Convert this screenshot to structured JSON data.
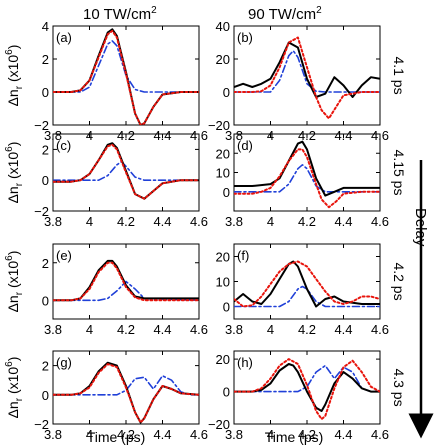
{
  "columns": [
    {
      "title_main": "10 TW/cm",
      "title_sup": "2"
    },
    {
      "title_main": "90 TW/cm",
      "title_sup": "2"
    }
  ],
  "rows": [
    {
      "delay_label": "4.1 ps"
    },
    {
      "delay_label": "4.15 ps"
    },
    {
      "delay_label": "4.2 ps"
    },
    {
      "delay_label": "4.3 ps"
    }
  ],
  "delay_axis_label": "Delay",
  "xlabel": "Time (ps)",
  "ylabel_main": "Δn",
  "ylabel_sub": "r",
  "ylabel_paren_open": " (x10",
  "ylabel_sup": "6",
  "ylabel_paren_close": ")",
  "colors": {
    "black_series": "#000000",
    "red_series": "#e8140c",
    "blue_series": "#2040d8"
  },
  "chart_data": [
    {
      "type": "line",
      "panel_label": "(a)",
      "xlim": [
        3.8,
        4.6
      ],
      "ylim": [
        -2,
        4
      ],
      "xticks": [
        "3.8",
        "4",
        "4.2",
        "4.4",
        "4.6"
      ],
      "yticks": [
        "−2",
        "0",
        "2",
        "4"
      ],
      "series": [
        {
          "style": "solid black",
          "x": [
            3.8,
            3.9,
            3.95,
            4,
            4.05,
            4.1,
            4.125,
            4.15,
            4.2,
            4.25,
            4.28,
            4.3,
            4.35,
            4.4,
            4.5,
            4.6
          ],
          "y": [
            0,
            0,
            0.1,
            0.7,
            2.2,
            3.6,
            3.8,
            3.4,
            1.2,
            -1.3,
            -2,
            -1.9,
            -0.9,
            -0.15,
            0,
            0
          ]
        },
        {
          "style": "dotted red",
          "x": [
            3.8,
            3.9,
            3.95,
            4,
            4.05,
            4.1,
            4.125,
            4.15,
            4.2,
            4.25,
            4.28,
            4.3,
            4.35,
            4.4,
            4.5,
            4.6
          ],
          "y": [
            0,
            0,
            0.1,
            0.7,
            2.1,
            3.5,
            3.7,
            3.3,
            1.1,
            -1.3,
            -2,
            -1.9,
            -0.9,
            -0.15,
            0,
            0
          ]
        },
        {
          "style": "dash-dot blue",
          "x": [
            3.8,
            3.95,
            4,
            4.05,
            4.1,
            4.125,
            4.15,
            4.2,
            4.25,
            4.3,
            4.6
          ],
          "y": [
            0,
            0,
            0.3,
            1.6,
            2.9,
            3.1,
            2.8,
            1,
            0.15,
            0,
            0
          ]
        }
      ]
    },
    {
      "type": "line",
      "panel_label": "(b)",
      "xlim": [
        3.8,
        4.6
      ],
      "ylim": [
        -20,
        40
      ],
      "xticks": [
        "3.8",
        "4",
        "4.2",
        "4.4",
        "4.6"
      ],
      "yticks": [
        "−20",
        "0",
        "20",
        "40"
      ],
      "series": [
        {
          "style": "solid black",
          "x": [
            3.8,
            3.85,
            3.9,
            3.95,
            4,
            4.05,
            4.1,
            4.15,
            4.2,
            4.25,
            4.3,
            4.35,
            4.4,
            4.45,
            4.5,
            4.55,
            4.6
          ],
          "y": [
            3,
            5,
            3,
            5,
            8,
            18,
            30,
            27,
            8,
            -3,
            -1,
            9,
            4,
            -3,
            4,
            9,
            8
          ]
        },
        {
          "style": "dotted red",
          "x": [
            3.8,
            3.9,
            3.95,
            4,
            4.05,
            4.1,
            4.15,
            4.2,
            4.25,
            4.28,
            4.32,
            4.36,
            4.4,
            4.5,
            4.6
          ],
          "y": [
            0,
            0,
            0.5,
            4,
            15,
            30,
            33,
            15,
            -3,
            -11,
            -16,
            -9,
            -2,
            0,
            0
          ]
        },
        {
          "style": "dash-dot blue",
          "x": [
            3.8,
            4,
            4.05,
            4.1,
            4.125,
            4.15,
            4.2,
            4.25,
            4.3,
            4.6
          ],
          "y": [
            0,
            0,
            7,
            22,
            25,
            21,
            5,
            0.5,
            0,
            0
          ]
        }
      ]
    },
    {
      "type": "line",
      "panel_label": "(c)",
      "xlim": [
        3.8,
        4.6
      ],
      "ylim": [
        -2,
        3
      ],
      "xticks": [
        "3.8",
        "4",
        "4.2",
        "4.4",
        "4.6"
      ],
      "yticks": [
        "−2",
        "0",
        "2"
      ],
      "series": [
        {
          "style": "solid black",
          "x": [
            3.8,
            3.9,
            3.95,
            4,
            4.05,
            4.1,
            4.125,
            4.15,
            4.2,
            4.25,
            4.3,
            4.35,
            4.4,
            4.5,
            4.6
          ],
          "y": [
            -0.1,
            -0.1,
            0,
            0.4,
            1.3,
            2.3,
            2.4,
            2.1,
            0.6,
            -0.9,
            -1.2,
            -0.7,
            -0.2,
            0,
            0
          ]
        },
        {
          "style": "dotted red",
          "x": [
            3.8,
            3.9,
            3.95,
            4,
            4.05,
            4.1,
            4.125,
            4.15,
            4.2,
            4.25,
            4.3,
            4.35,
            4.4,
            4.5,
            4.6
          ],
          "y": [
            -0.1,
            -0.1,
            0,
            0.4,
            1.3,
            2.2,
            2.3,
            2,
            0.5,
            -0.9,
            -1.2,
            -0.7,
            -0.2,
            0,
            0
          ]
        },
        {
          "style": "dash-dot blue",
          "x": [
            3.8,
            4.05,
            4.1,
            4.15,
            4.175,
            4.2,
            4.25,
            4.3,
            4.6
          ],
          "y": [
            0,
            0,
            0.3,
            1,
            1.2,
            0.9,
            0.2,
            0,
            0
          ]
        }
      ]
    },
    {
      "type": "line",
      "panel_label": "(d)",
      "xlim": [
        3.8,
        4.6
      ],
      "ylim": [
        -10,
        30
      ],
      "xticks": [
        "3.8",
        "4",
        "4.2",
        "4.4",
        "4.6"
      ],
      "yticks": [
        "0",
        "10",
        "20"
      ],
      "series": [
        {
          "style": "solid black",
          "x": [
            3.8,
            3.9,
            4,
            4.05,
            4.1,
            4.15,
            4.175,
            4.2,
            4.25,
            4.3,
            4.35,
            4.4,
            4.5,
            4.6
          ],
          "y": [
            3,
            3,
            4,
            7,
            16,
            25,
            26,
            22,
            7,
            -2,
            0,
            2,
            2,
            2
          ]
        },
        {
          "style": "dotted red",
          "x": [
            3.8,
            3.9,
            3.95,
            4,
            4.05,
            4.1,
            4.15,
            4.175,
            4.2,
            4.25,
            4.28,
            4.32,
            4.36,
            4.4,
            4.5,
            4.6
          ],
          "y": [
            -1,
            -1,
            0,
            2,
            8,
            16,
            22,
            22,
            18,
            4,
            -4,
            -8,
            -5,
            -1,
            0,
            0
          ]
        },
        {
          "style": "dash-dot blue",
          "x": [
            3.8,
            4.05,
            4.1,
            4.15,
            4.175,
            4.2,
            4.25,
            4.3,
            4.6
          ],
          "y": [
            0,
            0,
            4,
            12,
            14,
            12,
            3,
            0,
            0
          ]
        }
      ]
    },
    {
      "type": "line",
      "panel_label": "(e)",
      "xlim": [
        3.8,
        4.6
      ],
      "ylim": [
        -1,
        3
      ],
      "xticks": [
        "3.8",
        "4",
        "4.2",
        "4.4",
        "4.6"
      ],
      "yticks": [
        "0",
        "2"
      ],
      "series": [
        {
          "style": "solid black",
          "x": [
            3.8,
            3.9,
            3.95,
            4,
            4.05,
            4.1,
            4.125,
            4.15,
            4.2,
            4.25,
            4.3,
            4.35,
            4.4,
            4.5,
            4.6
          ],
          "y": [
            0,
            0,
            0.1,
            0.7,
            1.6,
            2.1,
            2.1,
            1.8,
            0.8,
            0.2,
            0.1,
            0.1,
            0.1,
            0.1,
            0.1
          ]
        },
        {
          "style": "dotted red",
          "x": [
            3.8,
            3.9,
            3.95,
            4,
            4.05,
            4.1,
            4.125,
            4.15,
            4.2,
            4.25,
            4.3,
            4.35,
            4.4,
            4.5,
            4.6
          ],
          "y": [
            0,
            0,
            0.1,
            0.6,
            1.5,
            2,
            2,
            1.7,
            0.7,
            0.15,
            0,
            0,
            0,
            0,
            0
          ]
        },
        {
          "style": "dash-dot blue",
          "x": [
            3.8,
            4.05,
            4.1,
            4.15,
            4.2,
            4.25,
            4.3,
            4.6
          ],
          "y": [
            0,
            0,
            0.1,
            0.5,
            1,
            0.6,
            0.1,
            0
          ]
        }
      ]
    },
    {
      "type": "line",
      "panel_label": "(f)",
      "xlim": [
        3.8,
        4.6
      ],
      "ylim": [
        -5,
        25
      ],
      "xticks": [
        "3.8",
        "4",
        "4.2",
        "4.4",
        "4.6"
      ],
      "yticks": [
        "0",
        "10",
        "20"
      ],
      "series": [
        {
          "style": "solid black",
          "x": [
            3.8,
            3.85,
            3.9,
            3.95,
            4,
            4.05,
            4.1,
            4.125,
            4.15,
            4.2,
            4.25,
            4.3,
            4.35,
            4.4,
            4.5,
            4.6
          ],
          "y": [
            2,
            5,
            2,
            1,
            5,
            11,
            17,
            18,
            16,
            7,
            0,
            3,
            4,
            2,
            1,
            1
          ]
        },
        {
          "style": "dotted red",
          "x": [
            3.8,
            3.85,
            3.9,
            3.95,
            4,
            4.05,
            4.1,
            4.15,
            4.2,
            4.25,
            4.3,
            4.35,
            4.4,
            4.45,
            4.5,
            4.55,
            4.6
          ],
          "y": [
            3,
            0,
            0.5,
            4,
            9,
            14,
            17,
            18,
            16,
            11,
            6,
            2,
            1,
            2,
            4,
            4,
            3
          ]
        },
        {
          "style": "dash-dot blue",
          "x": [
            3.8,
            4.05,
            4.1,
            4.15,
            4.175,
            4.2,
            4.25,
            4.3,
            4.6
          ],
          "y": [
            0,
            0,
            2,
            7,
            8,
            7,
            2,
            0,
            0
          ]
        }
      ]
    },
    {
      "type": "line",
      "panel_label": "(g)",
      "xlim": [
        3.8,
        4.6
      ],
      "ylim": [
        -2,
        3
      ],
      "xticks": [
        "3.8",
        "4",
        "4.2",
        "4.4",
        "4.6"
      ],
      "yticks": [
        "−2",
        "0",
        "2"
      ],
      "series": [
        {
          "style": "solid black",
          "x": [
            3.8,
            3.9,
            3.95,
            4,
            4.05,
            4.1,
            4.15,
            4.2,
            4.25,
            4.28,
            4.3,
            4.35,
            4.4,
            4.45,
            4.5,
            4.6
          ],
          "y": [
            0,
            0,
            0.1,
            0.6,
            1.6,
            2.2,
            2,
            0.6,
            -1.2,
            -1.9,
            -1.6,
            -0.3,
            0.6,
            0.4,
            0.1,
            0
          ]
        },
        {
          "style": "dotted red",
          "x": [
            3.8,
            3.9,
            3.95,
            4,
            4.05,
            4.1,
            4.15,
            4.2,
            4.25,
            4.28,
            4.3,
            4.35,
            4.4,
            4.45,
            4.5,
            4.6
          ],
          "y": [
            0,
            0,
            0.1,
            0.5,
            1.5,
            2.1,
            1.9,
            0.5,
            -1.2,
            -1.9,
            -1.6,
            -0.3,
            0.6,
            0.4,
            0.1,
            0
          ]
        },
        {
          "style": "dash-dot blue",
          "x": [
            3.8,
            4.15,
            4.2,
            4.25,
            4.3,
            4.35,
            4.4,
            4.45,
            4.5,
            4.55,
            4.6
          ],
          "y": [
            0,
            0,
            0.3,
            1.1,
            1.2,
            0.4,
            1.3,
            1,
            0.2,
            0,
            0
          ]
        }
      ]
    },
    {
      "type": "line",
      "panel_label": "(h)",
      "xlim": [
        3.8,
        4.6
      ],
      "ylim": [
        -20,
        25
      ],
      "xticks": [
        "3.8",
        "4",
        "4.2",
        "4.4",
        "4.6"
      ],
      "yticks": [
        "−20",
        "0",
        "20"
      ],
      "series": [
        {
          "style": "solid black",
          "x": [
            3.8,
            3.9,
            3.95,
            4,
            4.05,
            4.1,
            4.125,
            4.15,
            4.2,
            4.25,
            4.28,
            4.3,
            4.35,
            4.4,
            4.45,
            4.5,
            4.55,
            4.6
          ],
          "y": [
            0,
            0,
            1,
            5,
            13,
            17,
            16,
            12,
            0,
            -10,
            -12,
            -8,
            5,
            12,
            8,
            2,
            0,
            0
          ]
        },
        {
          "style": "dotted red",
          "x": [
            3.8,
            3.9,
            3.95,
            4,
            4.05,
            4.1,
            4.15,
            4.2,
            4.25,
            4.28,
            4.3,
            4.35,
            4.4,
            4.45,
            4.5,
            4.55,
            4.6
          ],
          "y": [
            0,
            0,
            2,
            8,
            16,
            20,
            17,
            4,
            -12,
            -17,
            -15,
            2,
            15,
            19,
            12,
            3,
            0
          ]
        },
        {
          "style": "dash-dot blue",
          "x": [
            3.8,
            4.15,
            4.2,
            4.25,
            4.3,
            4.35,
            4.4,
            4.45,
            4.5,
            4.55,
            4.6
          ],
          "y": [
            0,
            0,
            3,
            12,
            16,
            8,
            15,
            12,
            2,
            0,
            0
          ]
        }
      ]
    }
  ]
}
